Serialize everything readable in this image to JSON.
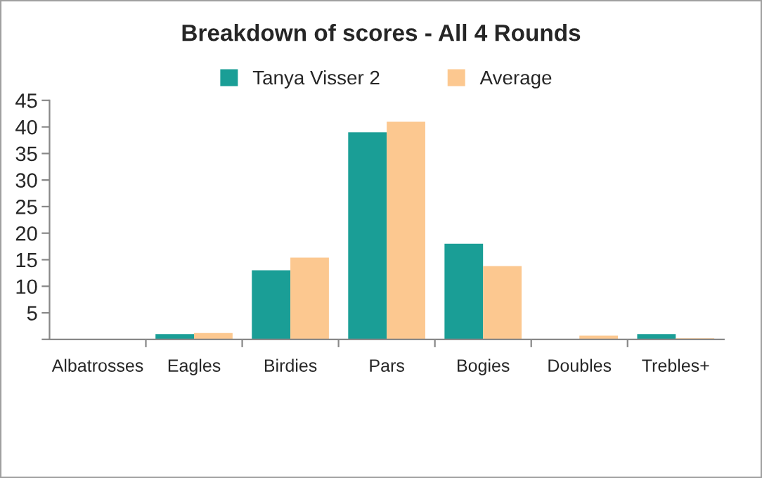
{
  "chart_data": {
    "type": "bar",
    "title": "Breakdown of scores - All 4 Rounds",
    "categories": [
      "Albatrosses",
      "Eagles",
      "Birdies",
      "Pars",
      "Bogies",
      "Doubles",
      "Trebles+"
    ],
    "series": [
      {
        "name": "Tanya Visser 2",
        "color": "#1a9e96",
        "values": [
          0,
          1,
          13,
          39,
          18,
          0,
          1
        ]
      },
      {
        "name": "Average",
        "color": "#fcc890",
        "values": [
          0,
          1.2,
          15.4,
          41,
          13.8,
          0.7,
          0.2
        ]
      }
    ],
    "ylim": [
      0,
      45
    ],
    "yticks": [
      {
        "value": 0,
        "label": null
      },
      5,
      10,
      15,
      20,
      25,
      30,
      35,
      40,
      45
    ],
    "grid": false,
    "legend": "top"
  }
}
